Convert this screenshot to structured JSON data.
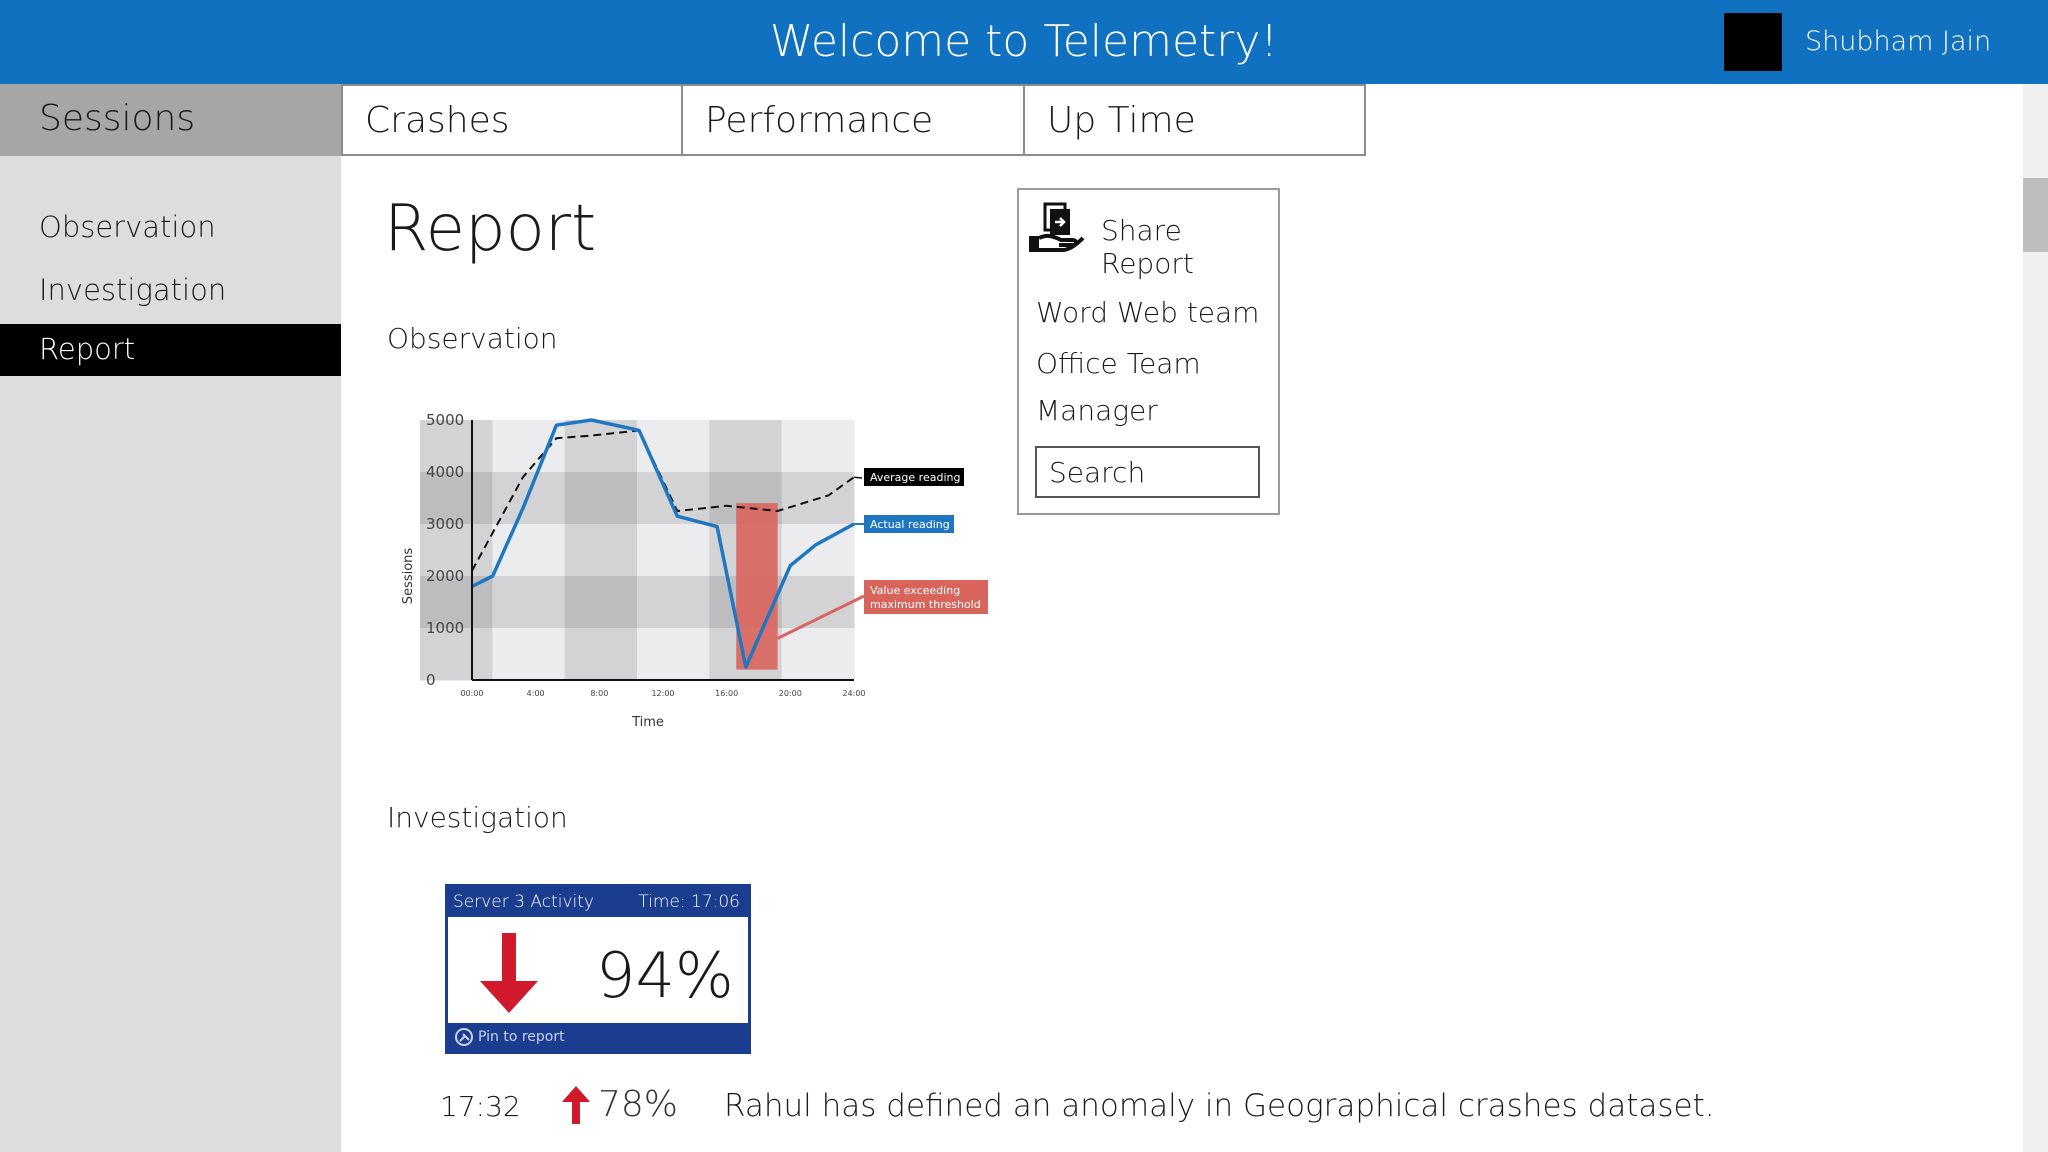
{
  "header": {
    "title": "Welcome to Telemetry!",
    "user_name": "Shubham Jain"
  },
  "sidebar": {
    "heading": "Sessions",
    "items": [
      {
        "label": "Observation"
      },
      {
        "label": "Investigation"
      },
      {
        "label": "Report",
        "active": true
      }
    ]
  },
  "tabs": [
    {
      "label": "Crashes"
    },
    {
      "label": "Performance"
    },
    {
      "label": "Up Time"
    }
  ],
  "page": {
    "title": "Report"
  },
  "sections": {
    "observation": "Observation",
    "investigation": "Investigation"
  },
  "share": {
    "title": "Share Report",
    "icon": "share-hand-icon",
    "recipients": [
      "Word Web team",
      "Office Team",
      "Manager"
    ],
    "search_placeholder": "Search"
  },
  "chart_data": {
    "type": "line",
    "xlabel": "Time",
    "ylabel": "Sessions",
    "x_ticks": [
      "00:00",
      "4:00",
      "8:00",
      "12:00",
      "16:00",
      "20:00",
      "24:00"
    ],
    "y_ticks": [
      "5000",
      "4000",
      "3000",
      "2000",
      "1000",
      "0"
    ],
    "xlim": [
      0,
      24
    ],
    "ylim": [
      0,
      5000
    ],
    "series": [
      {
        "name": "Average reading",
        "color": "#111111",
        "dash": true,
        "points": [
          [
            0,
            2100
          ],
          [
            1.6,
            3000
          ],
          [
            3.2,
            3900
          ],
          [
            5.3,
            4650
          ],
          [
            7.5,
            4700
          ],
          [
            10.5,
            4800
          ],
          [
            12.9,
            3250
          ],
          [
            16,
            3350
          ],
          [
            19.2,
            3250
          ],
          [
            22.4,
            3550
          ],
          [
            24,
            3900
          ]
        ]
      },
      {
        "name": "Actual reading",
        "color": "#1f77c2",
        "dash": false,
        "points": [
          [
            0,
            1800
          ],
          [
            1.3,
            2000
          ],
          [
            3.2,
            3300
          ],
          [
            5.3,
            4900
          ],
          [
            7.5,
            5000
          ],
          [
            10.5,
            4800
          ],
          [
            12.9,
            3150
          ],
          [
            15.4,
            2950
          ],
          [
            17.2,
            250
          ],
          [
            20,
            2200
          ],
          [
            21.6,
            2600
          ],
          [
            24,
            3000
          ]
        ]
      }
    ],
    "threshold_band": {
      "x_from": 16.6,
      "x_to": 19.2,
      "y_from": 200,
      "y_to": 3400,
      "color": "#d9645c"
    },
    "annotations": [
      {
        "text": "Average reading",
        "bg": "#000000",
        "color": "#ffffff"
      },
      {
        "text": "Actual reading",
        "bg": "#1f77c2",
        "color": "#ffffff"
      },
      {
        "lines": [
          "Value exceeding",
          "maximum threshold"
        ],
        "bg": "#d9645c",
        "color": "#ffffff"
      }
    ]
  },
  "activity_card": {
    "title": "Server 3 Activity",
    "time": "Time: 17:06",
    "value": "94%",
    "direction": "down",
    "arrow_color": "#d0192a",
    "footer": "Pin to report"
  },
  "feed": [
    {
      "time": "17:32",
      "pct": "78%",
      "direction": "up",
      "text": "Rahul has defined an anomaly in Geographical crashes dataset."
    }
  ]
}
